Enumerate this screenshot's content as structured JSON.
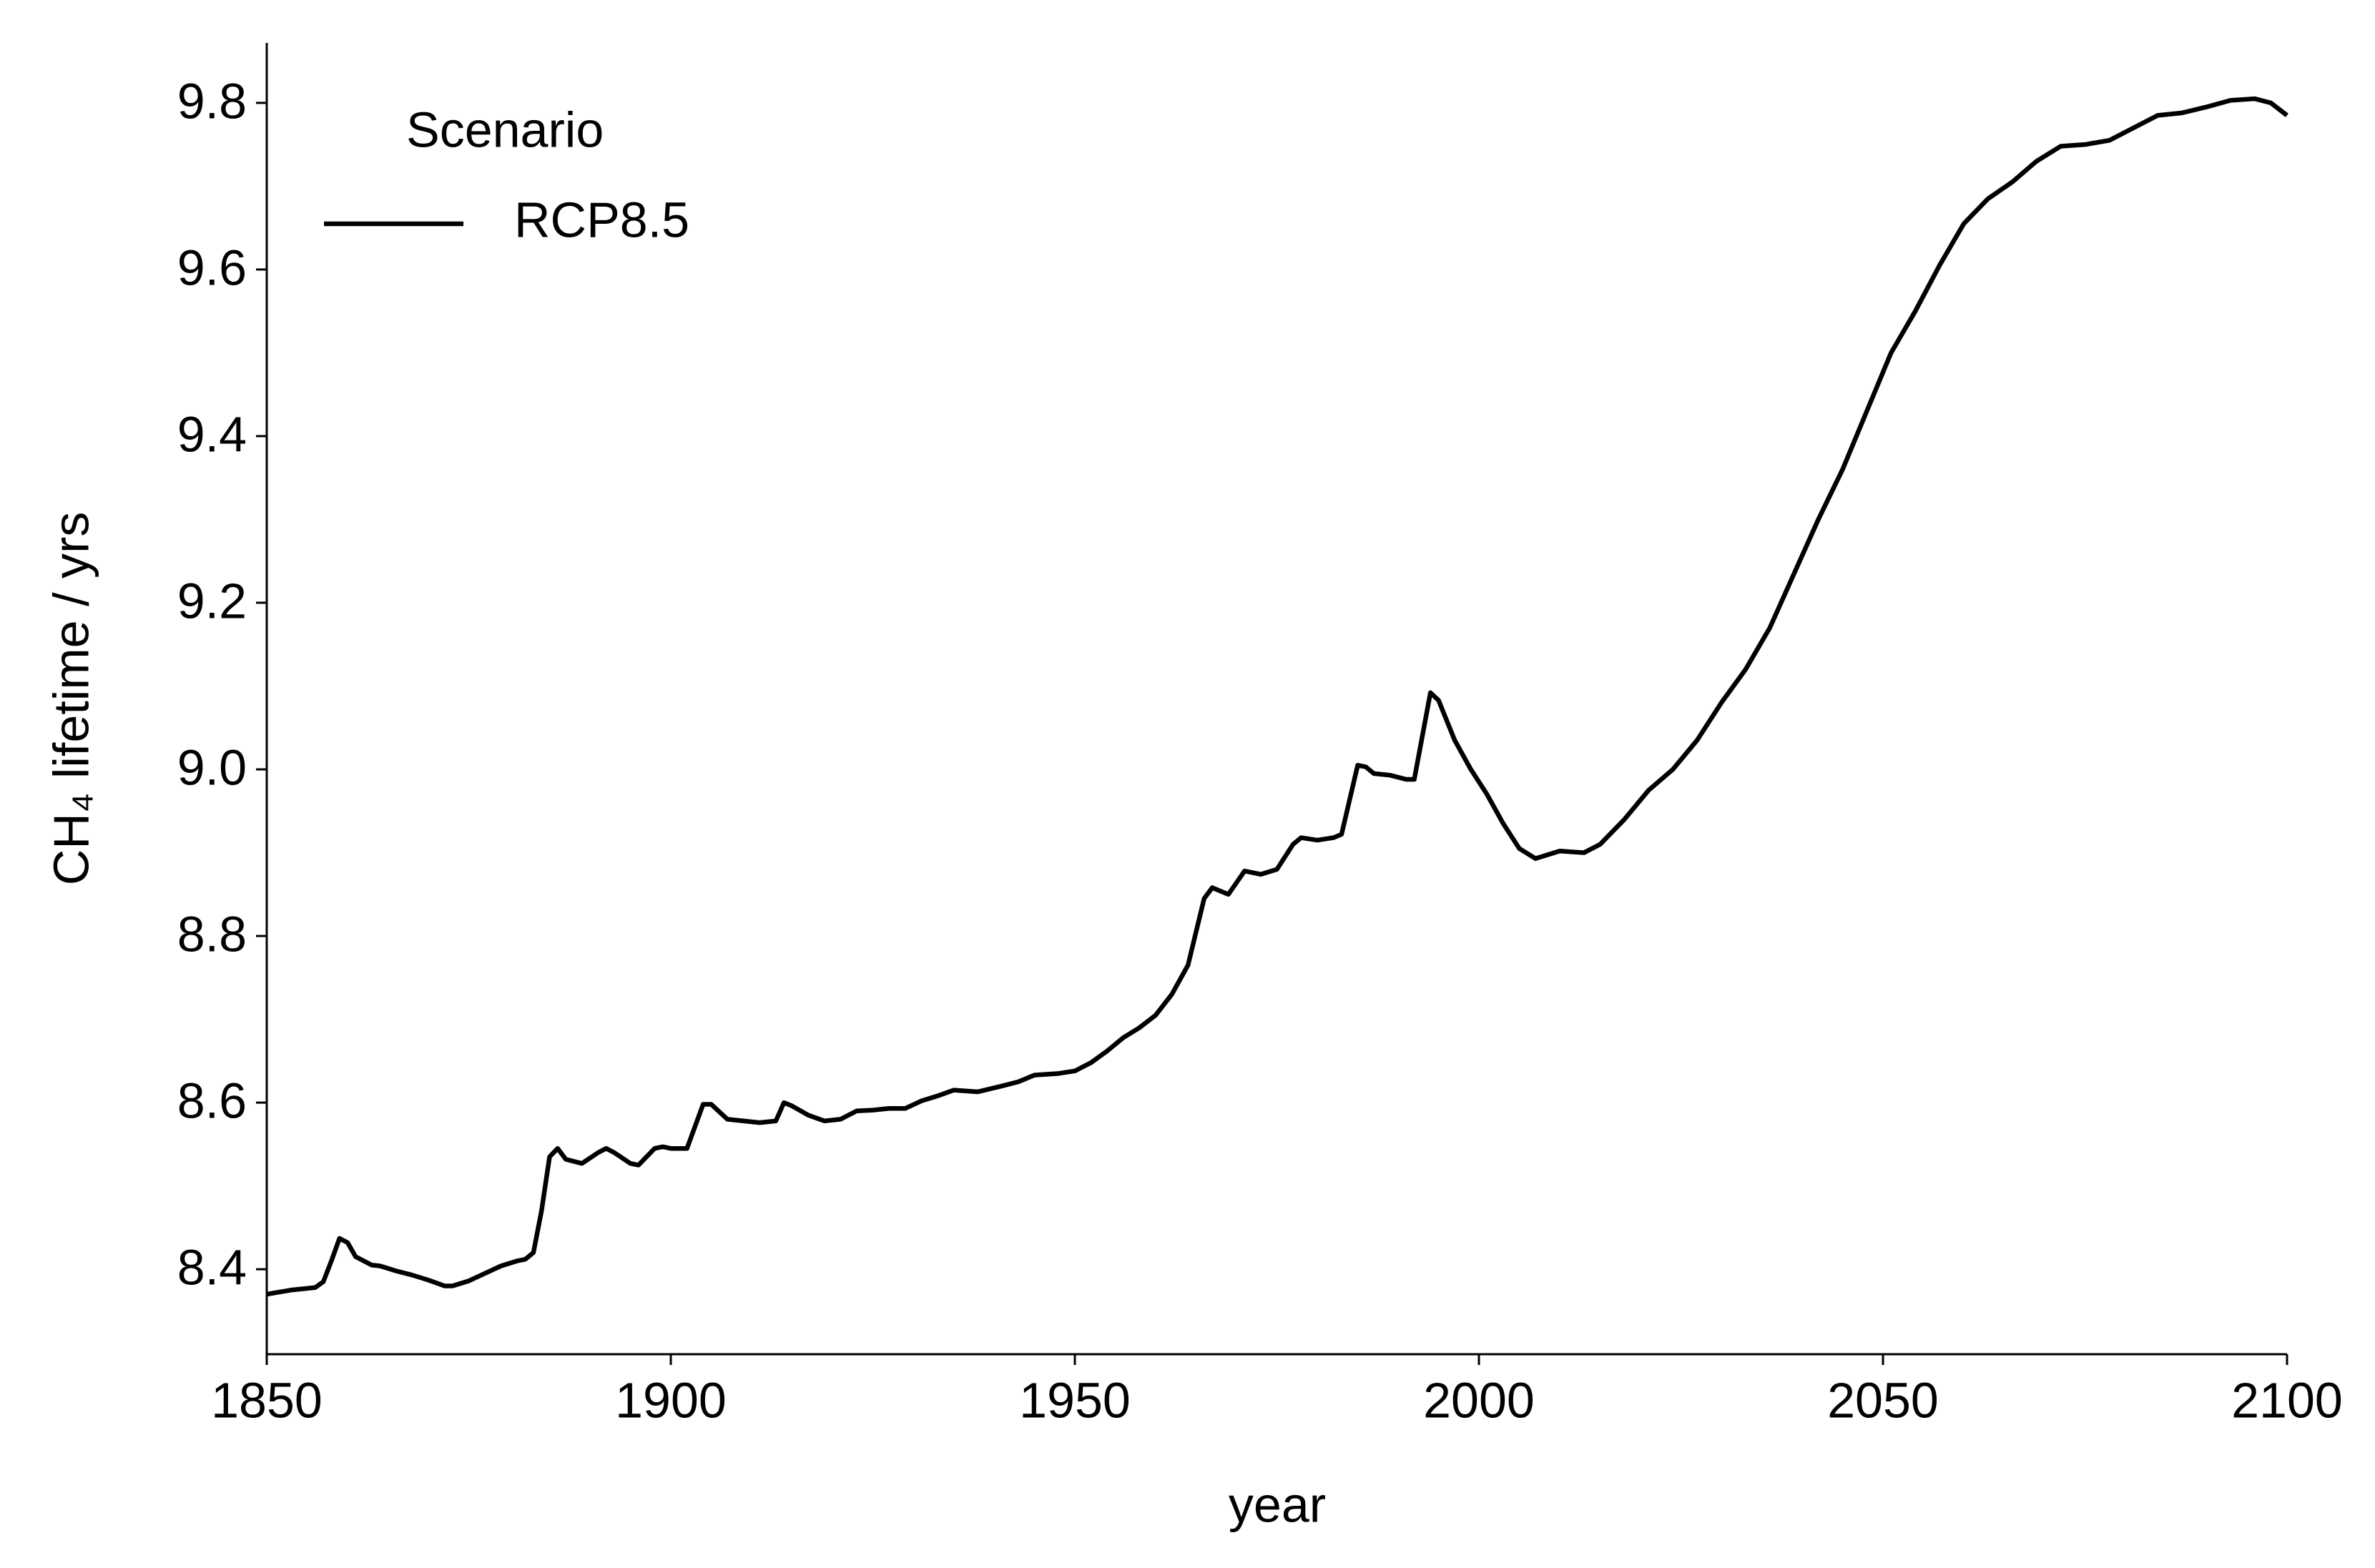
{
  "chart_data": {
    "type": "line",
    "xlabel": "year",
    "ylabel": "CH₄ lifetime / yrs",
    "legend_title": "Scenario",
    "legend_loc": "upper left",
    "grid": false,
    "xlim": [
      1850,
      2100
    ],
    "xticks": [
      1850,
      1900,
      1950,
      2000,
      2050,
      2100
    ],
    "ylim": [
      8.298,
      9.872
    ],
    "yticks": [
      8.4,
      8.6,
      8.8,
      {
        "value": 9.0,
        "label": "9.0"
      },
      9.2,
      9.4,
      9.6,
      9.8
    ],
    "x": [
      1850,
      1853,
      1856,
      1857,
      1858,
      1859,
      1860,
      1861,
      1863,
      1864,
      1866,
      1868,
      1870,
      1872,
      1873,
      1875,
      1877,
      1879,
      1881,
      1882,
      1883,
      1884,
      1885,
      1886,
      1887,
      1889,
      1891,
      1892,
      1893,
      1895,
      1896,
      1898,
      1899,
      1900,
      1902,
      1904,
      1905,
      1907,
      1909,
      1911,
      1913,
      1914,
      1915,
      1917,
      1919,
      1921,
      1923,
      1925,
      1927,
      1929,
      1931,
      1933,
      1935,
      1938,
      1941,
      1943,
      1945,
      1948,
      1950,
      1952,
      1954,
      1956,
      1958,
      1960,
      1962,
      1964,
      1966,
      1967,
      1969,
      1971,
      1973,
      1975,
      1977,
      1978,
      1980,
      1982,
      1983,
      1985,
      1986,
      1987,
      1989,
      1991,
      1992,
      1994,
      1995,
      1997,
      1999,
      2001,
      2003,
      2005,
      2007,
      2010,
      2013,
      2015,
      2018,
      2021,
      2024,
      2027,
      2030,
      2033,
      2036,
      2039,
      2042,
      2045,
      2048,
      2051,
      2054,
      2057,
      2060,
      2063,
      2066,
      2069,
      2072,
      2075,
      2078,
      2081,
      2084,
      2087,
      2090,
      2093,
      2096,
      2098,
      2100
    ],
    "series": [
      {
        "name": "RCP8.5",
        "color": "#000000",
        "values": [
          8.37,
          8.375,
          8.378,
          8.385,
          8.41,
          8.437,
          8.432,
          8.415,
          8.405,
          8.404,
          8.398,
          8.393,
          8.387,
          8.38,
          8.38,
          8.386,
          8.395,
          8.404,
          8.41,
          8.412,
          8.42,
          8.47,
          8.535,
          8.545,
          8.532,
          8.527,
          8.54,
          8.545,
          8.54,
          8.527,
          8.525,
          8.545,
          8.547,
          8.545,
          8.545,
          8.598,
          8.598,
          8.58,
          8.578,
          8.576,
          8.578,
          8.6,
          8.596,
          8.585,
          8.578,
          8.58,
          8.59,
          8.591,
          8.593,
          8.593,
          8.602,
          8.608,
          8.615,
          8.613,
          8.62,
          8.625,
          8.633,
          8.635,
          8.638,
          8.648,
          8.662,
          8.678,
          8.69,
          8.705,
          8.73,
          8.765,
          8.845,
          8.858,
          8.85,
          8.878,
          8.874,
          8.88,
          8.91,
          8.918,
          8.915,
          8.918,
          8.922,
          9.005,
          9.003,
          8.995,
          8.993,
          8.988,
          8.988,
          9.092,
          9.083,
          9.035,
          9.0,
          8.97,
          8.935,
          8.905,
          8.893,
          8.902,
          8.9,
          8.91,
          8.94,
          8.975,
          9.0,
          9.035,
          9.08,
          9.12,
          9.17,
          9.235,
          9.3,
          9.36,
          9.43,
          9.5,
          9.55,
          9.605,
          9.655,
          9.685,
          9.705,
          9.73,
          9.748,
          9.75,
          9.755,
          9.77,
          9.785,
          9.788,
          9.795,
          9.803,
          9.805,
          9.8,
          9.785
        ]
      }
    ]
  }
}
